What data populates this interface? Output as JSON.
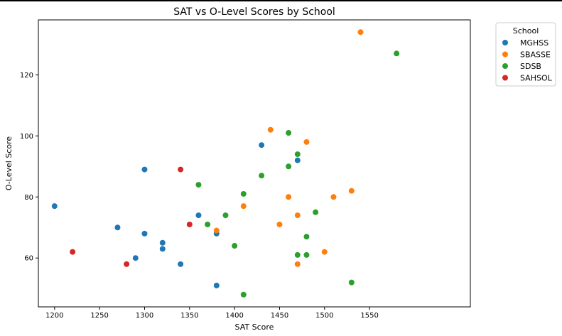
{
  "chart_data": {
    "type": "scatter",
    "title": "SAT vs O-Level Scores by School",
    "xlabel": "SAT Score",
    "ylabel": "O-Level Score",
    "xlim": [
      1182,
      1662
    ],
    "ylim": [
      44,
      138
    ],
    "xticks": [
      1200,
      1250,
      1300,
      1350,
      1400,
      1450,
      1500,
      1550
    ],
    "yticks": [
      60,
      80,
      100,
      120
    ],
    "grid": false,
    "legend": {
      "title": "School",
      "placement": "outside-right-top"
    },
    "series": [
      {
        "name": "MGHSS",
        "color": "#1f77b4",
        "points": [
          [
            1200,
            77
          ],
          [
            1270,
            70
          ],
          [
            1290,
            60
          ],
          [
            1300,
            89
          ],
          [
            1300,
            68
          ],
          [
            1320,
            65
          ],
          [
            1320,
            63
          ],
          [
            1340,
            58
          ],
          [
            1360,
            74
          ],
          [
            1380,
            68
          ],
          [
            1380,
            51
          ],
          [
            1430,
            97
          ],
          [
            1470,
            92
          ]
        ]
      },
      {
        "name": "SBASSE",
        "color": "#ff7f0e",
        "points": [
          [
            1380,
            69
          ],
          [
            1410,
            77
          ],
          [
            1440,
            102
          ],
          [
            1450,
            71
          ],
          [
            1460,
            80
          ],
          [
            1470,
            74
          ],
          [
            1470,
            58
          ],
          [
            1480,
            98
          ],
          [
            1500,
            62
          ],
          [
            1510,
            80
          ],
          [
            1530,
            82
          ],
          [
            1540,
            134
          ]
        ]
      },
      {
        "name": "SDSB",
        "color": "#2ca02c",
        "points": [
          [
            1360,
            84
          ],
          [
            1370,
            71
          ],
          [
            1390,
            74
          ],
          [
            1400,
            64
          ],
          [
            1410,
            81
          ],
          [
            1410,
            48
          ],
          [
            1430,
            87
          ],
          [
            1460,
            101
          ],
          [
            1460,
            90
          ],
          [
            1470,
            94
          ],
          [
            1470,
            61
          ],
          [
            1480,
            67
          ],
          [
            1480,
            61
          ],
          [
            1490,
            75
          ],
          [
            1530,
            52
          ],
          [
            1580,
            127
          ]
        ]
      },
      {
        "name": "SAHSOL",
        "color": "#d62728",
        "points": [
          [
            1220,
            62
          ],
          [
            1280,
            58
          ],
          [
            1340,
            89
          ],
          [
            1350,
            71
          ]
        ]
      }
    ]
  }
}
